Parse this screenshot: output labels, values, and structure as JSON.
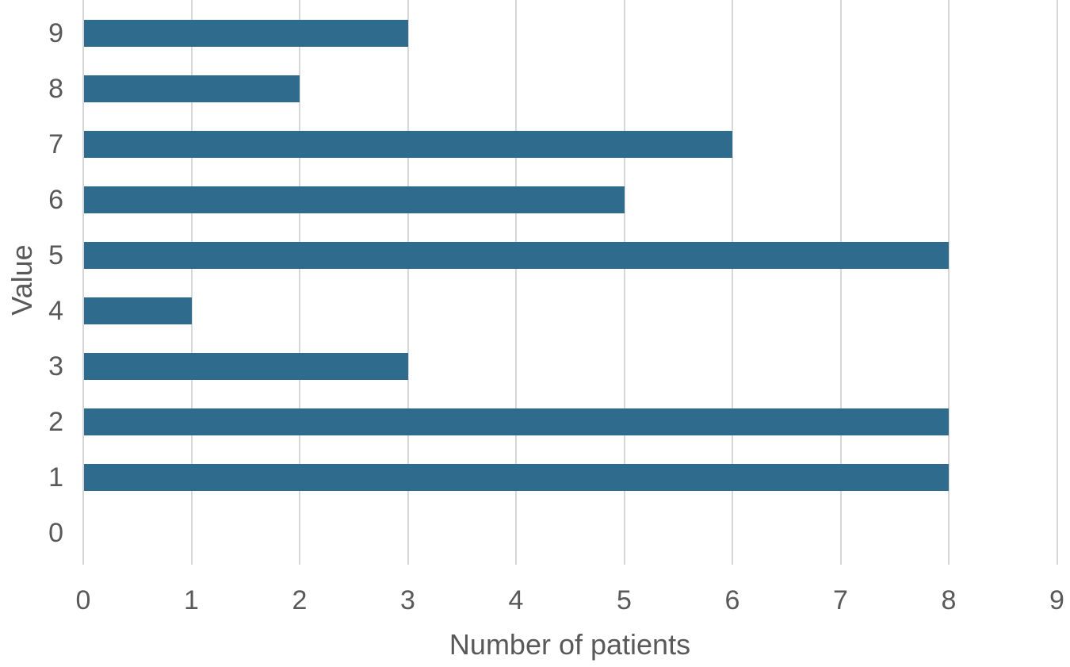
{
  "chart_data": {
    "type": "bar",
    "orientation": "horizontal",
    "title": "",
    "xlabel": "Number of patients",
    "ylabel": "Value",
    "categories_top_to_bottom": [
      "9",
      "8",
      "7",
      "6",
      "5",
      "4",
      "3",
      "2",
      "1",
      "0"
    ],
    "values": [
      3,
      2,
      6,
      5,
      8,
      1,
      3,
      8,
      8,
      0
    ],
    "x_ticks": [
      0,
      1,
      2,
      3,
      4,
      5,
      6,
      7,
      8,
      9
    ],
    "xlim": [
      0,
      9
    ],
    "grid": "vertical-only",
    "legend_position": "none",
    "colors": {
      "bar": "#2f6b8c",
      "gridline": "#d7d7d7",
      "text": "#595959",
      "background": "#ffffff"
    }
  }
}
